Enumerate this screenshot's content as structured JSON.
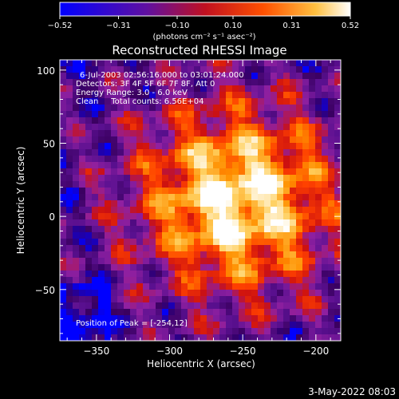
{
  "chart_data": {
    "type": "heatmap",
    "title": "Reconstructed RHESSI Image",
    "xlabel": "Heliocentric X (arcsec)",
    "ylabel": "Heliocentric Y (arcsec)",
    "xlim": [
      -375,
      -183
    ],
    "ylim": [
      -85,
      107
    ],
    "xticks": [
      -350,
      -300,
      -250,
      -200
    ],
    "xtick_labels": [
      "−350",
      "−300",
      "−250",
      "−200"
    ],
    "yticks": [
      -50,
      0,
      50,
      100
    ],
    "ytick_labels": [
      "−50",
      "0",
      "50",
      "100"
    ],
    "grid": false,
    "annotations": [
      "6-Jul-2003 02:56:16.000 to 03:01:24.000",
      "Detectors: 3F 4F 5F 6F 7F 8F, Att 0",
      "Energy Range: 3.0 - 6.0 keV",
      "Clean     Total counts: 6.56E+04"
    ],
    "peak_label": "Position of Peak = [-254,12]",
    "peak": [
      -254,
      12
    ],
    "colorbar": {
      "range": [
        -0.52,
        0.52
      ],
      "ticks": [
        -0.52,
        -0.31,
        -0.1,
        0.1,
        0.31,
        0.52
      ],
      "tick_labels": [
        "−0.52",
        "−0.31",
        "−0.10",
        "0.10",
        "0.31",
        "0.52"
      ],
      "units": "(photons cm⁻² s⁻¹ asec⁻²)",
      "placement": "top"
    },
    "colormap": [
      "#0000ff",
      "#3a0060",
      "#5a1090",
      "#9020a0",
      "#cc1010",
      "#ff4000",
      "#ff9000",
      "#ffd060",
      "#ffffff"
    ]
  },
  "footer": {
    "date": "3-May-2022 08:03"
  }
}
